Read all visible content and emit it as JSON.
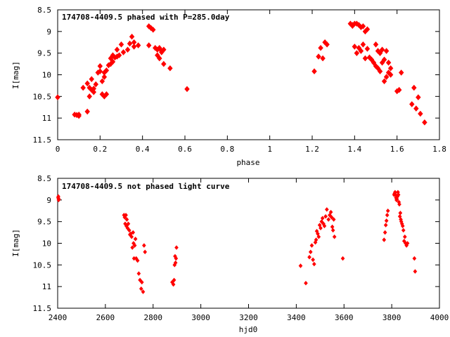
{
  "chart_data": [
    {
      "type": "scatter",
      "title": "174708-4409.5 phased with P=285.0day",
      "xlabel": "phase",
      "ylabel": "I[mag]",
      "xlim": [
        0,
        1.8
      ],
      "ylim": [
        11.5,
        8.5
      ],
      "y_inverted": true,
      "grid": false,
      "legend": "none",
      "marker_color": "#ff0000",
      "marker_shape": "filled-diamond",
      "x_ticks": [
        "0",
        "0.2",
        "0.4",
        "0.6",
        "0.8",
        "1",
        "1.2",
        "1.4",
        "1.6",
        "1.8"
      ],
      "y_ticks": [
        "8.5",
        "9",
        "9.5",
        "10",
        "10.5",
        "11",
        "11.5"
      ],
      "series": [
        {
          "x": [
            0.0,
            0.08,
            0.09,
            0.1,
            0.1,
            0.12,
            0.14,
            0.14,
            0.15,
            0.15,
            0.16,
            0.16,
            0.17,
            0.17,
            0.18,
            0.19,
            0.2,
            0.2,
            0.21,
            0.21,
            0.22,
            0.22,
            0.22,
            0.23,
            0.23,
            0.24,
            0.25,
            0.25,
            0.26,
            0.26,
            0.27,
            0.28,
            0.28,
            0.29,
            0.3,
            0.31,
            0.33,
            0.34,
            0.35,
            0.36,
            0.36,
            0.38,
            0.43,
            0.43,
            0.44,
            0.45,
            0.46,
            0.47,
            0.47,
            0.48,
            0.48,
            0.49,
            0.49,
            0.5,
            0.5,
            0.53,
            0.61,
            1.21,
            1.23,
            1.24,
            1.25,
            1.26,
            1.27,
            1.38,
            1.39,
            1.39,
            1.4,
            1.4,
            1.41,
            1.41,
            1.42,
            1.42,
            1.43,
            1.43,
            1.44,
            1.44,
            1.45,
            1.45,
            1.46,
            1.46,
            1.47,
            1.48,
            1.49,
            1.5,
            1.5,
            1.51,
            1.51,
            1.52,
            1.52,
            1.53,
            1.53,
            1.54,
            1.54,
            1.55,
            1.55,
            1.56,
            1.56,
            1.57,
            1.57,
            1.6,
            1.61,
            1.62,
            1.67,
            1.68,
            1.69,
            1.7,
            1.71,
            1.73
          ],
          "y": [
            10.52,
            10.92,
            10.93,
            10.92,
            10.95,
            10.3,
            10.85,
            10.2,
            10.3,
            10.5,
            10.1,
            10.35,
            10.32,
            10.4,
            10.22,
            9.95,
            9.8,
            9.92,
            10.45,
            10.15,
            10.05,
            9.95,
            10.5,
            9.9,
            10.45,
            9.78,
            9.75,
            9.62,
            9.7,
            9.55,
            9.6,
            9.58,
            9.42,
            9.55,
            9.3,
            9.48,
            9.42,
            9.28,
            9.12,
            9.35,
            9.25,
            9.32,
            8.88,
            9.32,
            8.92,
            8.96,
            9.38,
            9.55,
            9.42,
            9.62,
            9.38,
            9.48,
            9.45,
            9.42,
            9.75,
            9.85,
            10.33,
            9.92,
            9.58,
            9.38,
            9.62,
            9.25,
            9.3,
            8.82,
            8.87,
            8.85,
            9.35,
            8.82,
            9.5,
            8.82,
            9.38,
            8.85,
            9.45,
            8.9,
            9.3,
            8.88,
            9.62,
            9.0,
            9.4,
            8.95,
            9.6,
            9.65,
            9.72,
            9.3,
            9.8,
            9.45,
            9.85,
            9.5,
            9.92,
            9.42,
            9.72,
            9.65,
            10.15,
            9.45,
            10.05,
            9.72,
            9.95,
            10.0,
            9.85,
            10.38,
            10.35,
            9.95,
            10.68,
            10.3,
            10.78,
            10.52,
            10.9,
            11.1
          ]
        }
      ]
    },
    {
      "type": "scatter",
      "title": "174708-4409.5 not phased light curve",
      "xlabel": "hjd0",
      "ylabel": "I[mag]",
      "xlim": [
        2400,
        4000
      ],
      "ylim": [
        11.5,
        8.5
      ],
      "y_inverted": true,
      "grid": false,
      "legend": "none",
      "marker_color": "#ff0000",
      "marker_shape": "small-diamond",
      "x_ticks": [
        "2400",
        "2600",
        "2800",
        "3000",
        "3200",
        "3400",
        "3600",
        "3800",
        "4000"
      ],
      "y_ticks": [
        "8.5",
        "9",
        "9.5",
        "10",
        "10.5",
        "11",
        "11.5"
      ],
      "series": [
        {
          "x": [
            2402,
            2403,
            2404,
            2405,
            2678,
            2681,
            2683,
            2686,
            2688,
            2690,
            2693,
            2696,
            2700,
            2703,
            2706,
            2710,
            2713,
            2716,
            2718,
            2720,
            2723,
            2726,
            2729,
            2735,
            2740,
            2745,
            2750,
            2753,
            2758,
            2762,
            2766,
            2880,
            2885,
            2888,
            2890,
            2892,
            2894,
            2896,
            2898,
            3418,
            3440,
            3455,
            3460,
            3465,
            3470,
            3475,
            3480,
            3483,
            3486,
            3490,
            3494,
            3498,
            3502,
            3506,
            3510,
            3514,
            3518,
            3523,
            3528,
            3535,
            3540,
            3545,
            3548,
            3551,
            3554,
            3557,
            3560,
            3595,
            3768,
            3772,
            3775,
            3778,
            3781,
            3784,
            3810,
            3812,
            3814,
            3816,
            3818,
            3820,
            3822,
            3824,
            3826,
            3828,
            3830,
            3832,
            3834,
            3836,
            3838,
            3840,
            3843,
            3846,
            3849,
            3852,
            3855,
            3858,
            3862,
            3866,
            3895,
            3898
          ],
          "y": [
            8.95,
            8.92,
            9.0,
            8.98,
            9.35,
            9.4,
            9.55,
            9.35,
            9.6,
            9.45,
            9.65,
            9.55,
            9.7,
            9.8,
            9.78,
            9.85,
            10.1,
            9.75,
            10.0,
            10.35,
            10.05,
            9.9,
            10.35,
            10.4,
            10.7,
            10.85,
            11.05,
            10.9,
            11.12,
            10.05,
            10.2,
            10.9,
            10.95,
            10.85,
            10.5,
            10.3,
            10.45,
            10.35,
            10.1,
            10.52,
            10.92,
            10.32,
            10.2,
            10.05,
            10.38,
            10.48,
            9.98,
            9.92,
            9.72,
            9.78,
            9.85,
            9.58,
            9.65,
            9.5,
            9.42,
            9.55,
            9.6,
            9.38,
            9.22,
            9.45,
            9.35,
            9.28,
            9.4,
            9.62,
            9.7,
            9.45,
            9.85,
            10.35,
            9.92,
            9.75,
            9.58,
            9.48,
            9.35,
            9.25,
            8.88,
            8.85,
            8.82,
            8.88,
            8.95,
            9.0,
            8.98,
            8.92,
            8.82,
            8.88,
            9.05,
            9.1,
            9.38,
            9.3,
            9.45,
            9.5,
            9.55,
            9.6,
            9.7,
            9.95,
            9.85,
            10.0,
            10.05,
            10.0,
            10.35,
            10.65
          ]
        }
      ]
    }
  ]
}
